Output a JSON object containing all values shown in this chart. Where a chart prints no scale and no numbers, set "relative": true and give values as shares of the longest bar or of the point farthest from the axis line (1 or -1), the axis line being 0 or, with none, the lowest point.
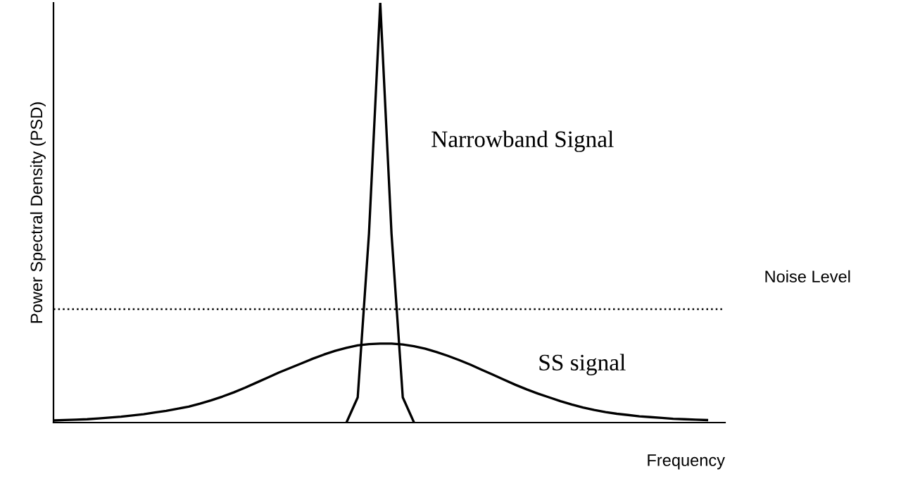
{
  "chart_data": {
    "type": "line",
    "relative": true,
    "ylabel": "Power Spectral Density (PSD)",
    "xlabel": "Frequency",
    "categories": [
      null,
      null,
      null,
      null,
      null,
      null,
      null,
      null,
      null,
      null,
      null,
      null,
      null,
      null,
      null,
      null,
      null,
      null,
      null,
      null,
      null,
      null,
      null,
      null,
      null,
      null,
      null,
      null,
      null,
      null,
      null,
      null,
      null,
      null,
      null,
      null,
      null,
      null,
      null,
      null,
      null,
      null,
      null,
      null,
      null,
      null,
      null,
      null,
      null,
      null,
      null,
      null,
      null,
      null,
      null,
      null,
      null,
      null,
      null,
      null
    ],
    "series": [
      {
        "name": "Narrowband Signal",
        "color": "#000000",
        "values": [
          null,
          null,
          null,
          null,
          null,
          null,
          null,
          null,
          null,
          null,
          null,
          null,
          null,
          null,
          null,
          null,
          null,
          null,
          null,
          null,
          null,
          null,
          null,
          null,
          null,
          null,
          0,
          0.06,
          0.45,
          1,
          0.45,
          0.06,
          0,
          null,
          null,
          null,
          null,
          null,
          null,
          null,
          null,
          null,
          null,
          null,
          null,
          null,
          null,
          null,
          null,
          null,
          null,
          null,
          null,
          null,
          null,
          null,
          null,
          null,
          null,
          null
        ]
      },
      {
        "name": "SS signal",
        "color": "#000000",
        "values": [
          0.005,
          0.006,
          0.007,
          0.008,
          0.01,
          0.012,
          0.014,
          0.017,
          0.02,
          0.024,
          0.028,
          0.033,
          0.038,
          0.045,
          0.053,
          0.062,
          0.072,
          0.083,
          0.095,
          0.107,
          0.119,
          0.13,
          0.141,
          0.152,
          0.162,
          0.171,
          0.178,
          0.184,
          0.187,
          0.188,
          0.188,
          0.186,
          0.182,
          0.176,
          0.168,
          0.159,
          0.149,
          0.138,
          0.126,
          0.114,
          0.102,
          0.09,
          0.079,
          0.069,
          0.06,
          0.051,
          0.043,
          0.036,
          0.03,
          0.025,
          0.021,
          0.018,
          0.015,
          0.013,
          0.011,
          0.009,
          0.008,
          0.007,
          0.006,
          null
        ]
      }
    ],
    "ref_lines": [
      {
        "axis": "y",
        "value": 0.27,
        "label": "Noise Level",
        "color": "#000000",
        "line_style": "dotted"
      }
    ],
    "legend": false,
    "marker": "none",
    "line_style": "solid"
  }
}
